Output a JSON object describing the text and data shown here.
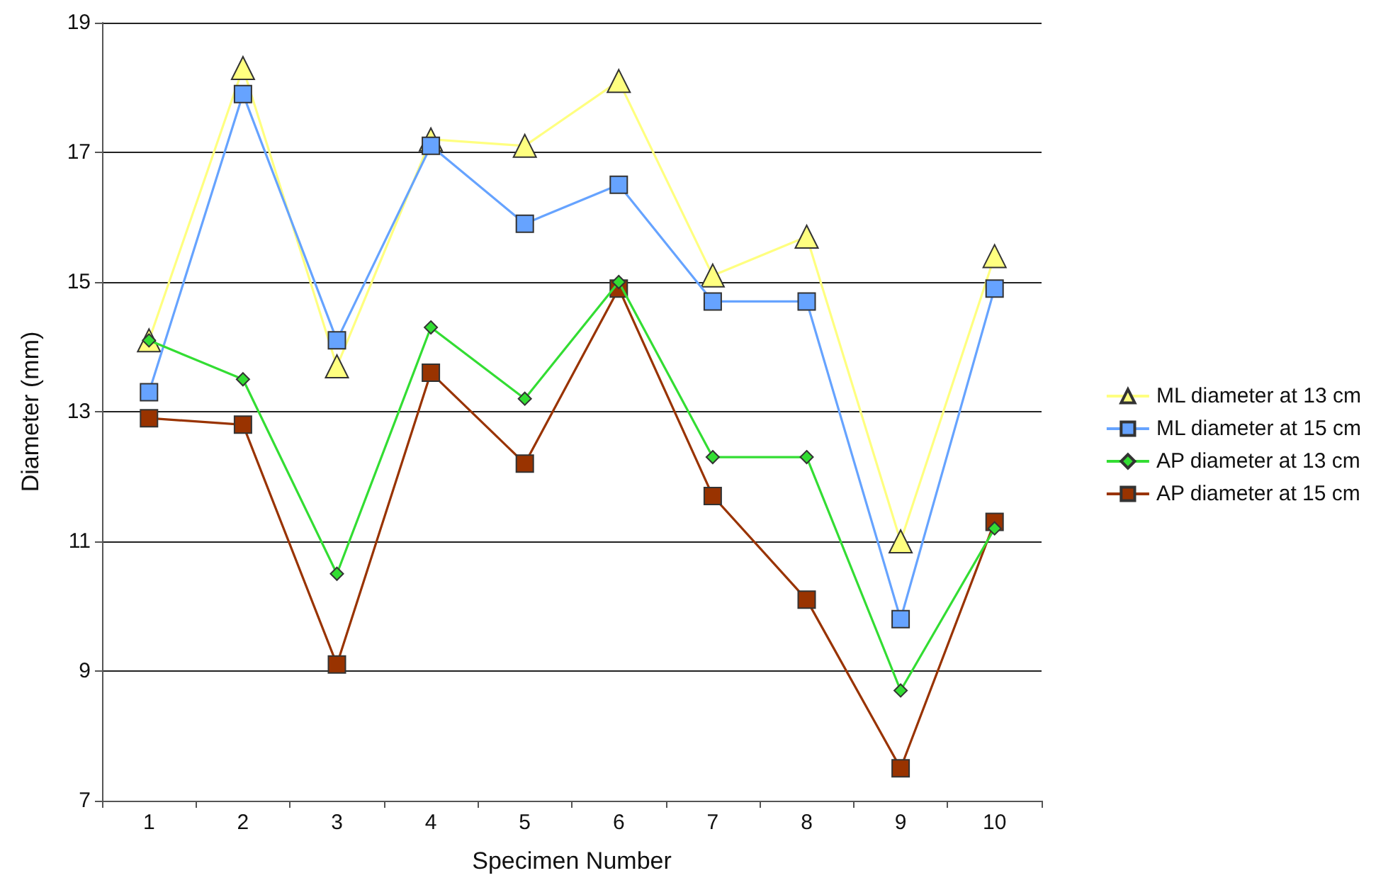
{
  "chart_data": {
    "type": "line",
    "xlabel": "Specimen Number",
    "ylabel": "Diameter (mm)",
    "categories": [
      "1",
      "2",
      "3",
      "4",
      "5",
      "6",
      "7",
      "8",
      "9",
      "10"
    ],
    "series": [
      {
        "name": "ML diameter at 13 cm",
        "color": "#ffff80",
        "marker": "triangle",
        "values": [
          14.1,
          18.3,
          13.7,
          17.2,
          17.1,
          18.1,
          15.1,
          15.7,
          11.0,
          15.4
        ]
      },
      {
        "name": "ML diameter at 15 cm",
        "color": "#66a3ff",
        "marker": "square",
        "values": [
          13.3,
          17.9,
          14.1,
          17.1,
          15.9,
          16.5,
          14.7,
          14.7,
          9.8,
          14.9
        ]
      },
      {
        "name": "AP diameter at 13 cm",
        "color": "#33dd33",
        "marker": "diamond",
        "values": [
          14.1,
          13.5,
          10.5,
          14.3,
          13.2,
          15.0,
          12.3,
          12.3,
          8.7,
          11.2
        ]
      },
      {
        "name": "AP diameter at 15 cm",
        "color": "#993300",
        "marker": "square",
        "values": [
          12.9,
          12.8,
          9.1,
          13.6,
          12.2,
          14.9,
          11.7,
          10.1,
          7.5,
          11.3
        ]
      }
    ],
    "ylim": [
      7,
      19
    ],
    "yticks": [
      7,
      9,
      11,
      13,
      15,
      17,
      19
    ],
    "grid": "y",
    "legend": "right"
  }
}
